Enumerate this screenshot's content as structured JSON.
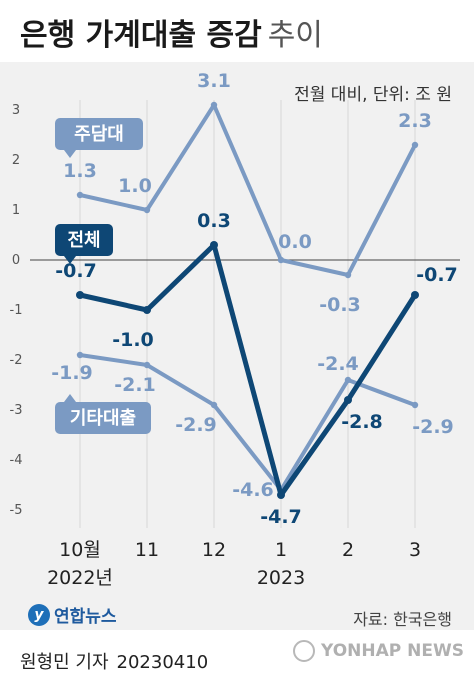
{
  "title": {
    "main": "은행 가계대출 증감",
    "light": "추이"
  },
  "unit_note": "전월 대비, 단위: 조 원",
  "source": "자료: 한국은행",
  "byline": {
    "author": "원형민 기자",
    "date": "20230410"
  },
  "logo_text": "연합뉴스",
  "watermark_text": "YONHAP NEWS",
  "colors": {
    "mortgage": "#7b9ac3",
    "total": "#0e4775",
    "other": "#7b9ac3",
    "panel_bg": "#f1f1f1",
    "grid": "#d6d6d6",
    "zero_line": "#666666"
  },
  "chart_data": {
    "type": "line",
    "categories": [
      "10월",
      "11",
      "12",
      "1",
      "2",
      "3"
    ],
    "year_labels": [
      {
        "text": "2022년",
        "category": 0
      },
      {
        "text": "2023",
        "category": 3
      }
    ],
    "ylim": [
      -5,
      3
    ],
    "yticks": [
      3,
      2,
      1,
      0,
      -1,
      -2,
      -3,
      -4,
      -5
    ],
    "grid": true,
    "series": [
      {
        "name": "주담대",
        "values": [
          1.3,
          1.0,
          3.1,
          0.0,
          -0.3,
          2.3
        ],
        "labels": [
          "1.3",
          "1.0",
          "3.1",
          "0.0",
          "-0.3",
          "2.3"
        ]
      },
      {
        "name": "전체",
        "values": [
          -0.7,
          -1.0,
          0.3,
          -4.7,
          -2.8,
          -0.7
        ],
        "labels": [
          "-0.7",
          "-1.0",
          "0.3",
          "-4.7",
          "-2.8",
          "-0.7"
        ]
      },
      {
        "name": "기타대출",
        "values": [
          -1.9,
          -2.1,
          -2.9,
          -4.6,
          -2.4,
          -2.9
        ],
        "labels": [
          "-1.9",
          "-2.1",
          "-2.9",
          "-4.6",
          "-2.4",
          "-2.9"
        ]
      }
    ]
  }
}
